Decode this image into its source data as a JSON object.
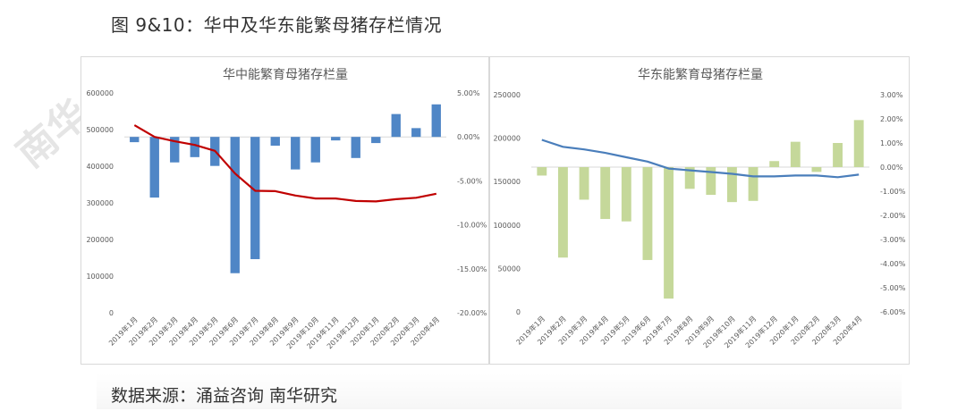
{
  "figure_title": "图 9&10：华中及华东能繁母猪存栏情况",
  "watermark": "南华",
  "source_text": "数据来源：涌益咨询  南华研究",
  "colors": {
    "left_bar": "#4f86c6",
    "left_line": "#c00000",
    "right_bar": "#c5d89a",
    "right_line": "#4a7ebb",
    "axis": "#d9d9d9",
    "tick_text": "#595959"
  },
  "chart_data": [
    {
      "type": "bar+line",
      "title": "华中能繁育母猪存栏量",
      "categories": [
        "2019年1月",
        "2019年2月",
        "2019年3月",
        "2019年4月",
        "2019年5月",
        "2019年6月",
        "2019年7月",
        "2019年8月",
        "2019年9月",
        "2019年10月",
        "2019年11月",
        "2019年12月",
        "2020年1月",
        "2020年2月",
        "2020年3月",
        "2020年4月"
      ],
      "series": [
        {
          "axis": "left",
          "kind": "line",
          "values": [
            512000,
            480000,
            468000,
            458000,
            442000,
            380000,
            333000,
            332000,
            320000,
            312000,
            312000,
            305000,
            304000,
            310000,
            314000,
            325000
          ]
        },
        {
          "axis": "right",
          "kind": "bar",
          "values": [
            -0.6,
            -6.9,
            -2.9,
            -2.3,
            -3.3,
            -15.5,
            -13.9,
            -1.0,
            -3.7,
            -2.9,
            -0.4,
            -2.4,
            -0.7,
            2.6,
            1.0,
            3.7
          ]
        }
      ],
      "y_left": {
        "min": 0,
        "max": 600000,
        "ticks": [
          "0",
          "100000",
          "200000",
          "300000",
          "400000",
          "500000",
          "600000"
        ]
      },
      "y_right": {
        "min": -20,
        "max": 5,
        "ticks": [
          "-20.00%",
          "-15.00%",
          "-10.00%",
          "-5.00%",
          "0.00%",
          "5.00%"
        ]
      },
      "grid": false,
      "legend": "none"
    },
    {
      "type": "bar+line",
      "title": "华东能繁育母猪存栏量",
      "categories": [
        "2019年1月",
        "2019年2月",
        "2019年3月",
        "2019年4月",
        "2019年5月",
        "2019年6月",
        "2019年7月",
        "2019年8月",
        "2019年9月",
        "2019年10月",
        "2019年11月",
        "2019年12月",
        "2020年1月",
        "2020年2月",
        "2020年3月",
        "2020年4月"
      ],
      "series": [
        {
          "axis": "left",
          "kind": "line",
          "values": [
            198000,
            190000,
            187000,
            183000,
            178000,
            173000,
            165000,
            163000,
            161000,
            159000,
            156000,
            156000,
            157000,
            157000,
            155000,
            158000
          ]
        },
        {
          "axis": "right",
          "kind": "bar",
          "values": [
            -0.35,
            -3.75,
            -1.35,
            -2.15,
            -2.25,
            -3.85,
            -5.45,
            -0.9,
            -1.15,
            -1.45,
            -1.4,
            0.25,
            1.05,
            -0.2,
            1.0,
            1.95
          ]
        }
      ],
      "y_left": {
        "min": 0,
        "max": 250000,
        "ticks": [
          "0",
          "50000",
          "100000",
          "150000",
          "200000",
          "250000"
        ]
      },
      "y_right": {
        "min": -6,
        "max": 3,
        "ticks": [
          "-6.00%",
          "-5.00%",
          "-4.00%",
          "-3.00%",
          "-2.00%",
          "-1.00%",
          "0.00%",
          "1.00%",
          "2.00%",
          "3.00%"
        ]
      },
      "grid": false,
      "legend": "none"
    }
  ]
}
